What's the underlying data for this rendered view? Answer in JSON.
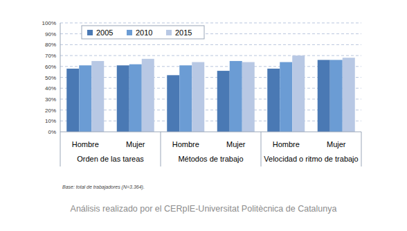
{
  "chart_data": {
    "type": "bar",
    "categories": [
      "Hombre",
      "Mujer",
      "Hombre",
      "Mujer",
      "Hombre",
      "Mujer"
    ],
    "groups": [
      "Orden de las tareas",
      "Métodos de trabajo",
      "Velocidad o ritmo de trabajo"
    ],
    "series": [
      {
        "name": "2005",
        "color": "#4a79b4",
        "values": [
          58,
          61,
          52,
          56,
          58,
          66
        ]
      },
      {
        "name": "2010",
        "color": "#6b9cd4",
        "values": [
          61,
          62,
          61,
          65,
          64,
          66
        ]
      },
      {
        "name": "2015",
        "color": "#b8c8e4",
        "values": [
          65,
          67,
          64,
          64,
          70,
          68
        ]
      }
    ],
    "ylim": [
      0,
      100
    ],
    "yticks": [
      {
        "value": 0,
        "label": "0%"
      },
      {
        "value": 10,
        "label": "10%"
      },
      {
        "value": 20,
        "label": "20%"
      },
      {
        "value": 30,
        "label": "30%"
      },
      {
        "value": 40,
        "label": "40%"
      },
      {
        "value": 50,
        "label": "50%"
      },
      {
        "value": 60,
        "label": "60%"
      },
      {
        "value": 70,
        "label": "70%"
      },
      {
        "value": 80,
        "label": "80%"
      },
      {
        "value": 90,
        "label": "90%"
      },
      {
        "value": 100,
        "label": "100%"
      }
    ],
    "grid": true,
    "legend": "top-left",
    "footnote": "Base: total de trabajadores (N=3.364).",
    "source": "Análisis realizado por el CERpIE-Universitat Politècnica de Catalunya"
  }
}
